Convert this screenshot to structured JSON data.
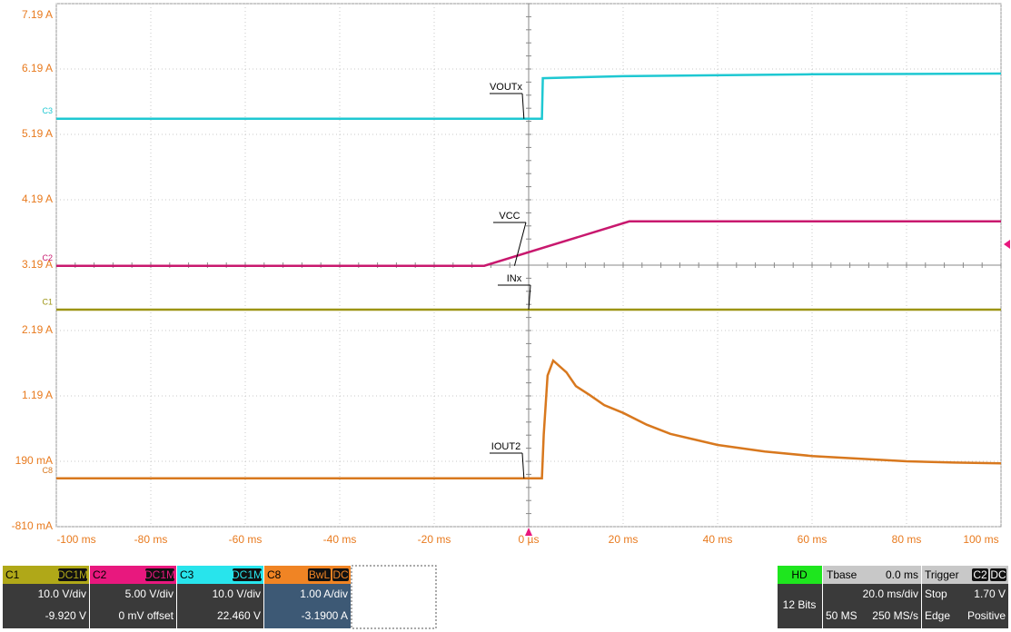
{
  "chart_data": {
    "type": "line",
    "xlim": [
      -100,
      100
    ],
    "xticks": [
      {
        "value": -100,
        "label": "-100 ms"
      },
      {
        "value": -80,
        "label": "-80 ms"
      },
      {
        "value": -60,
        "label": "-60 ms"
      },
      {
        "value": -40,
        "label": "-40 ms"
      },
      {
        "value": -20,
        "label": "-20 ms"
      },
      {
        "value": 0,
        "label": "0 µs"
      },
      {
        "value": 20,
        "label": "20 ms"
      },
      {
        "value": 40,
        "label": "40 ms"
      },
      {
        "value": 60,
        "label": "60 ms"
      },
      {
        "value": 80,
        "label": "80 ms"
      },
      {
        "value": 100,
        "label": "100 ms"
      }
    ],
    "ylim": [
      -0.81,
      7.19
    ],
    "yticks": [
      {
        "value": 7.19,
        "label": "7.19 A"
      },
      {
        "value": 6.19,
        "label": "6.19 A"
      },
      {
        "value": 5.19,
        "label": "5.19 A"
      },
      {
        "value": 4.19,
        "label": "4.19 A"
      },
      {
        "value": 3.19,
        "label": "3.19 A"
      },
      {
        "value": 2.19,
        "label": "2.19 A"
      },
      {
        "value": 1.19,
        "label": "1.19 A"
      },
      {
        "value": 0.19,
        "label": "190 mA"
      },
      {
        "value": -0.81,
        "label": "-810 mA"
      }
    ],
    "grid": true,
    "series": [
      {
        "name": "VOUTx",
        "channel": "C3",
        "color": "#1ec8d2",
        "x": [
          -100,
          2.8,
          3.0,
          20,
          60,
          100
        ],
        "values": [
          5.43,
          5.43,
          6.05,
          6.08,
          6.11,
          6.12
        ]
      },
      {
        "name": "VCC",
        "channel": "C2",
        "color": "#c8186e",
        "x": [
          -100,
          -9.4,
          21.3,
          100
        ],
        "values": [
          3.18,
          3.18,
          3.86,
          3.86
        ]
      },
      {
        "name": "INx",
        "channel": "C1",
        "color": "#9c9412",
        "x": [
          -100,
          100
        ],
        "values": [
          2.51,
          2.51
        ]
      },
      {
        "name": "IOUT2",
        "channel": "C8",
        "color": "#d8781e",
        "x": [
          -100,
          2.8,
          3.2,
          4,
          5.2,
          8,
          10,
          13,
          16,
          20,
          25,
          30,
          40,
          50,
          60,
          70,
          80,
          90,
          100
        ],
        "values": [
          -0.07,
          -0.07,
          0.6,
          1.5,
          1.73,
          1.55,
          1.34,
          1.2,
          1.05,
          0.93,
          0.75,
          0.61,
          0.44,
          0.34,
          0.27,
          0.23,
          0.19,
          0.17,
          0.16
        ]
      }
    ],
    "channels": [
      {
        "name": "C1",
        "tags": [
          "DC1M"
        ],
        "scale": "10.0 V/div",
        "offset": "-9.920 V",
        "color": "#b0a818"
      },
      {
        "name": "C2",
        "tags": [
          "DC1M"
        ],
        "scale": "5.00 V/div",
        "offset": "0 mV offset",
        "color": "#e8187e"
      },
      {
        "name": "C3",
        "tags": [
          "DC1M"
        ],
        "scale": "10.0 V/div",
        "offset": "22.460 V",
        "color": "#28e4ec"
      },
      {
        "name": "C8",
        "tags": [
          "BwL",
          "DC"
        ],
        "scale": "1.00 A/div",
        "offset": "-3.1900 A",
        "color": "#f08424"
      }
    ],
    "acquisition": {
      "mode": "HD",
      "bits": "12 Bits"
    },
    "timebase": {
      "label": "Tbase",
      "delay": "0.0 ms",
      "scale": "20.0 ms/div",
      "points": "50 MS",
      "rate": "250 MS/s"
    },
    "trigger": {
      "label": "Trigger",
      "tags": [
        "C2",
        "DC"
      ],
      "state": "Stop",
      "level": "1.70 V",
      "type": "Edge",
      "slope": "Positive"
    }
  }
}
